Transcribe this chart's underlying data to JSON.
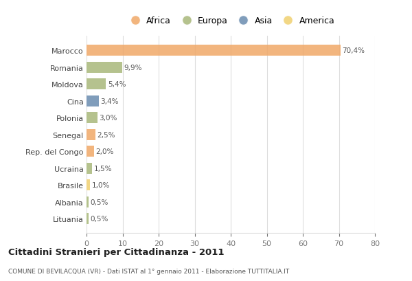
{
  "countries": [
    "Marocco",
    "Romania",
    "Moldova",
    "Cina",
    "Polonia",
    "Senegal",
    "Rep. del Congo",
    "Ucraina",
    "Brasile",
    "Albania",
    "Lituania"
  ],
  "values": [
    70.4,
    9.9,
    5.4,
    3.4,
    3.0,
    2.5,
    2.0,
    1.5,
    1.0,
    0.5,
    0.5
  ],
  "labels": [
    "70,4%",
    "9,9%",
    "5,4%",
    "3,4%",
    "3,0%",
    "2,5%",
    "2,0%",
    "1,5%",
    "1,0%",
    "0,5%",
    "0,5%"
  ],
  "colors": [
    "#F0A868",
    "#A8B87A",
    "#A8B87A",
    "#6A8CB0",
    "#A8B87A",
    "#F0A868",
    "#F0A868",
    "#A8B87A",
    "#F0D070",
    "#A8B87A",
    "#A8B87A"
  ],
  "legend_labels": [
    "Africa",
    "Europa",
    "Asia",
    "America"
  ],
  "legend_colors": [
    "#F0A868",
    "#A8B87A",
    "#6A8CB0",
    "#F0D070"
  ],
  "xlim": [
    0,
    80
  ],
  "xticks": [
    0,
    10,
    20,
    30,
    40,
    50,
    60,
    70,
    80
  ],
  "title_main": "Cittadini Stranieri per Cittadinanza - 2011",
  "title_sub": "COMUNE DI BEVILACQUA (VR) - Dati ISTAT al 1° gennaio 2011 - Elaborazione TUTTITALIA.IT",
  "background_color": "#ffffff",
  "bar_height": 0.65,
  "grid_color": "#dddddd"
}
